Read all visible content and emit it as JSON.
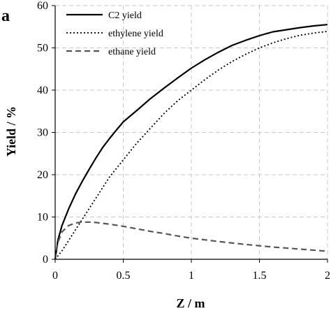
{
  "panel_label": "a",
  "chart_data": {
    "type": "line",
    "xlabel": "Z / m",
    "ylabel": "Yield / %",
    "xlim": [
      0,
      2
    ],
    "ylim": [
      0,
      60
    ],
    "xticks": [
      "0",
      "0.5",
      "1",
      "1.5",
      "2"
    ],
    "yticks": [
      "0",
      "10",
      "20",
      "30",
      "40",
      "50",
      "60"
    ],
    "grid": "dashed",
    "legend_position": "top-left",
    "series": [
      {
        "name": "C2 yield",
        "color": "#000000",
        "style": "solid",
        "x": [
          0,
          0.02,
          0.05,
          0.1,
          0.15,
          0.2,
          0.25,
          0.3,
          0.35,
          0.4,
          0.45,
          0.5,
          0.6,
          0.7,
          0.8,
          0.9,
          1.0,
          1.1,
          1.2,
          1.3,
          1.4,
          1.5,
          1.6,
          1.7,
          1.8,
          1.9,
          2.0
        ],
        "y": [
          0,
          4.5,
          8,
          12,
          15.5,
          18.5,
          21.3,
          24,
          26.5,
          28.6,
          30.6,
          32.5,
          35.2,
          38.0,
          40.5,
          42.9,
          45.2,
          47.2,
          49.0,
          50.6,
          51.8,
          52.9,
          53.8,
          54.3,
          54.8,
          55.2,
          55.5
        ]
      },
      {
        "name": "ethylene yield",
        "color": "#000000",
        "style": "dotted",
        "x": [
          0,
          0.05,
          0.1,
          0.2,
          0.3,
          0.4,
          0.5,
          0.6,
          0.7,
          0.8,
          0.9,
          1.0,
          1.1,
          1.2,
          1.3,
          1.4,
          1.5,
          1.6,
          1.7,
          1.8,
          1.9,
          2.0
        ],
        "y": [
          0,
          2,
          4.5,
          9.5,
          14.5,
          19.5,
          23.5,
          27.5,
          31,
          34.5,
          37.5,
          40,
          42.5,
          44.8,
          46.8,
          48.5,
          50.0,
          51.2,
          52.2,
          53.0,
          53.5,
          53.9
        ]
      },
      {
        "name": "ethane yield",
        "color": "#555555",
        "style": "dashed",
        "x": [
          0,
          0.02,
          0.05,
          0.1,
          0.15,
          0.2,
          0.25,
          0.3,
          0.35,
          0.4,
          0.5,
          0.6,
          0.7,
          0.8,
          0.9,
          1.0,
          1.2,
          1.4,
          1.6,
          1.8,
          2.0
        ],
        "y": [
          0,
          4,
          6.5,
          8.0,
          8.6,
          8.8,
          8.8,
          8.7,
          8.5,
          8.3,
          7.8,
          7.2,
          6.6,
          6.1,
          5.5,
          5.0,
          4.2,
          3.5,
          2.9,
          2.4,
          1.9
        ]
      }
    ]
  }
}
